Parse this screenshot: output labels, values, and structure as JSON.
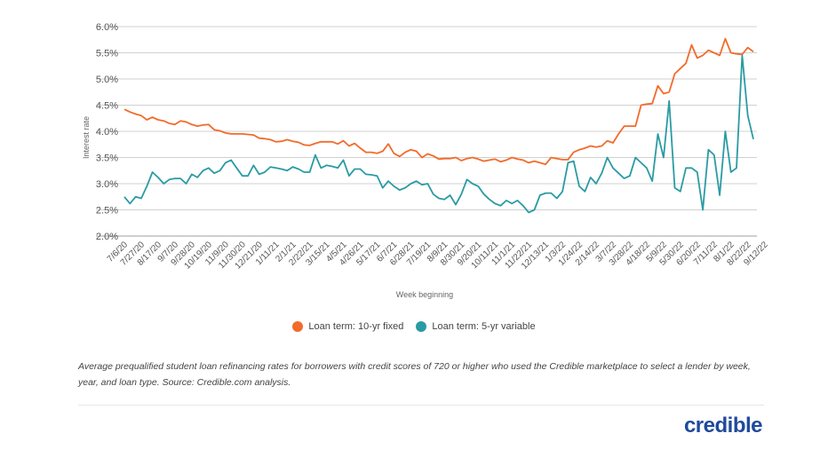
{
  "chart_data": {
    "type": "line",
    "xlabel": "Week beginning",
    "ylabel": "Interest rate",
    "ylim": [
      2.0,
      6.0
    ],
    "y_ticks": [
      "2.0%",
      "2.5%",
      "3.0%",
      "3.5%",
      "4.0%",
      "4.5%",
      "5.0%",
      "5.5%",
      "6.0%"
    ],
    "y_tick_values": [
      2.0,
      2.5,
      3.0,
      3.5,
      4.0,
      4.5,
      5.0,
      5.5,
      6.0
    ],
    "grid": true,
    "legend_position": "bottom",
    "x_tick_labels": [
      "7/6/20",
      "7/27/20",
      "8/17/20",
      "9/7/20",
      "9/28/20",
      "10/19/20",
      "11/9/20",
      "11/30/20",
      "12/21/20",
      "1/11/21",
      "2/1/21",
      "2/22/21",
      "3/15/21",
      "4/5/21",
      "4/26/21",
      "5/17/21",
      "6/7/21",
      "6/28/21",
      "7/19/21",
      "8/9/21",
      "8/30/21",
      "9/20/21",
      "10/11/21",
      "11/1/21",
      "11/22/21",
      "12/13/21",
      "1/3/22",
      "1/24/22",
      "2/14/22",
      "3/7/22",
      "3/28/22",
      "4/18/22",
      "5/9/22",
      "5/30/22",
      "6/20/22",
      "7/11/22",
      "8/1/22",
      "8/22/22",
      "9/12/22"
    ],
    "x_tick_every_weeks": 3,
    "series": [
      {
        "name": "Loan term: 10-yr fixed",
        "color": "#f26b2a",
        "values": [
          4.42,
          4.37,
          4.33,
          4.3,
          4.22,
          4.27,
          4.22,
          4.2,
          4.15,
          4.13,
          4.2,
          4.18,
          4.13,
          4.1,
          4.12,
          4.13,
          4.03,
          4.01,
          3.97,
          3.95,
          3.95,
          3.95,
          3.94,
          3.93,
          3.87,
          3.86,
          3.84,
          3.8,
          3.81,
          3.84,
          3.81,
          3.79,
          3.74,
          3.73,
          3.77,
          3.8,
          3.8,
          3.8,
          3.76,
          3.82,
          3.72,
          3.77,
          3.68,
          3.6,
          3.6,
          3.58,
          3.62,
          3.76,
          3.58,
          3.52,
          3.6,
          3.65,
          3.62,
          3.5,
          3.57,
          3.53,
          3.47,
          3.48,
          3.48,
          3.5,
          3.44,
          3.48,
          3.5,
          3.47,
          3.43,
          3.45,
          3.47,
          3.42,
          3.45,
          3.5,
          3.47,
          3.45,
          3.4,
          3.43,
          3.4,
          3.37,
          3.5,
          3.48,
          3.46,
          3.46,
          3.6,
          3.65,
          3.68,
          3.72,
          3.7,
          3.72,
          3.82,
          3.78,
          3.95,
          4.1,
          4.1,
          4.1,
          4.5,
          4.52,
          4.53,
          4.87,
          4.72,
          4.75,
          5.1,
          5.2,
          5.3,
          5.65,
          5.4,
          5.45,
          5.55,
          5.5,
          5.45,
          5.77,
          5.5,
          5.48,
          5.47,
          5.6,
          5.52
        ]
      },
      {
        "name": "Loan term: 5-yr variable",
        "color": "#2a9ba3",
        "values": [
          2.75,
          2.62,
          2.75,
          2.72,
          2.95,
          3.22,
          3.12,
          3.0,
          3.08,
          3.1,
          3.1,
          3.0,
          3.18,
          3.12,
          3.25,
          3.3,
          3.2,
          3.25,
          3.4,
          3.45,
          3.3,
          3.15,
          3.15,
          3.35,
          3.18,
          3.22,
          3.32,
          3.3,
          3.28,
          3.25,
          3.32,
          3.28,
          3.22,
          3.22,
          3.55,
          3.3,
          3.35,
          3.33,
          3.3,
          3.45,
          3.15,
          3.28,
          3.28,
          3.18,
          3.17,
          3.15,
          2.92,
          3.05,
          2.95,
          2.88,
          2.92,
          3.0,
          3.05,
          2.98,
          3.0,
          2.8,
          2.72,
          2.7,
          2.78,
          2.6,
          2.8,
          3.08,
          3.0,
          2.95,
          2.8,
          2.7,
          2.62,
          2.58,
          2.68,
          2.62,
          2.68,
          2.58,
          2.45,
          2.5,
          2.78,
          2.82,
          2.82,
          2.72,
          2.85,
          3.4,
          3.43,
          2.95,
          2.85,
          3.12,
          3.0,
          3.2,
          3.5,
          3.3,
          3.2,
          3.1,
          3.15,
          3.5,
          3.4,
          3.3,
          3.05,
          3.95,
          3.5,
          4.58,
          2.92,
          2.85,
          3.3,
          3.3,
          3.22,
          2.5,
          3.65,
          3.55,
          2.78,
          4.0,
          3.22,
          3.3,
          5.45,
          4.3,
          3.85
        ]
      }
    ]
  },
  "legend": {
    "items": [
      {
        "label": "Loan term: 10-yr fixed",
        "color": "#f26b2a"
      },
      {
        "label": "Loan term: 5-yr variable",
        "color": "#2a9ba3"
      }
    ]
  },
  "caption": "Average prequalified student loan refinancing rates for borrowers with credit scores of 720 or higher who used the Credible marketplace to select a lender by week, year, and loan type. Source: Credible.com analysis.",
  "logo": "credible"
}
